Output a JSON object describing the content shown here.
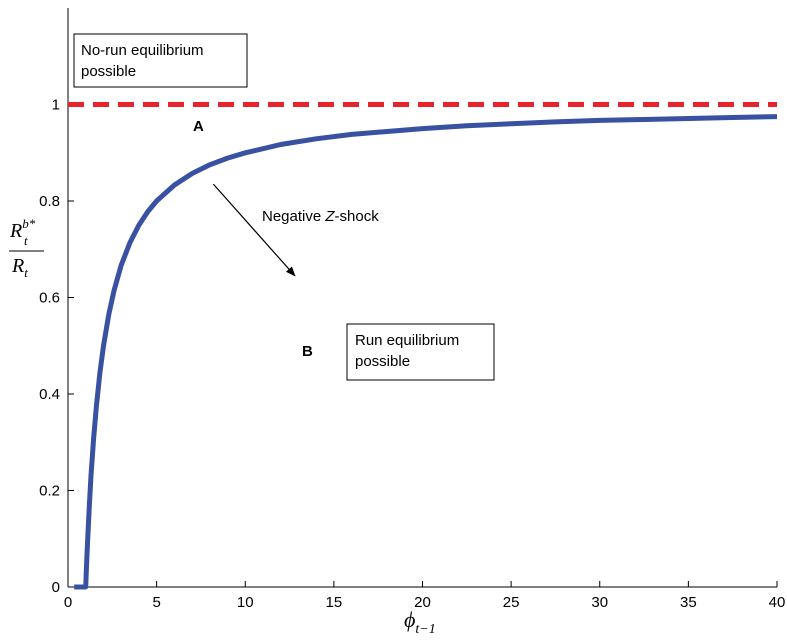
{
  "chart_data": {
    "type": "line",
    "title": "",
    "xlabel": {
      "base": "ϕ",
      "sub": "t−1"
    },
    "ylabel": {
      "num_base": "R",
      "num_sub": "t",
      "num_sup": "b*",
      "den_base": "R",
      "den_sub": "t"
    },
    "xlim": [
      0,
      40
    ],
    "ylim": [
      0,
      1.2
    ],
    "xticks": [
      "0",
      "5",
      "10",
      "15",
      "20",
      "25",
      "30",
      "35",
      "40"
    ],
    "yticks": [
      "0",
      "0.2",
      "0.4",
      "0.6",
      "0.8",
      "1"
    ],
    "grid": false,
    "series": [
      {
        "style": "solid",
        "color": "#3951a2",
        "x": [
          0.35,
          1.0,
          1.05,
          1.1,
          1.2,
          1.3,
          1.45,
          1.6,
          1.8,
          2.0,
          2.3,
          2.6,
          3.0,
          3.5,
          4.0,
          4.5,
          5.0,
          6.0,
          7.0,
          8.0,
          9.0,
          10.0,
          12.0,
          14.0,
          16.0,
          18.0,
          20.0,
          22.5,
          25.0,
          27.5,
          30.0,
          32.5,
          35.0,
          37.5,
          40.0
        ],
        "y": [
          0.0,
          0.0,
          0.048,
          0.091,
          0.167,
          0.231,
          0.31,
          0.375,
          0.444,
          0.5,
          0.565,
          0.615,
          0.667,
          0.714,
          0.75,
          0.778,
          0.8,
          0.833,
          0.857,
          0.875,
          0.889,
          0.9,
          0.917,
          0.929,
          0.938,
          0.944,
          0.95,
          0.956,
          0.96,
          0.964,
          0.967,
          0.969,
          0.971,
          0.973,
          0.975
        ]
      },
      {
        "style": "dashed",
        "color": "#e8232a",
        "x": [
          0,
          40
        ],
        "y": [
          1.0,
          1.0
        ]
      }
    ],
    "arrow": {
      "from": [
        8.2,
        0.835
      ],
      "to": [
        12.8,
        0.645
      ]
    },
    "annotations": {
      "point_a": "A",
      "point_b": "B",
      "shock_prefix": "Negative ",
      "shock_z": "Z",
      "shock_suffix": "-shock",
      "norun_line1": "No-run equilibrium",
      "norun_line2": "possible",
      "run_line1": "Run equilibrium",
      "run_line2": "possible"
    }
  }
}
